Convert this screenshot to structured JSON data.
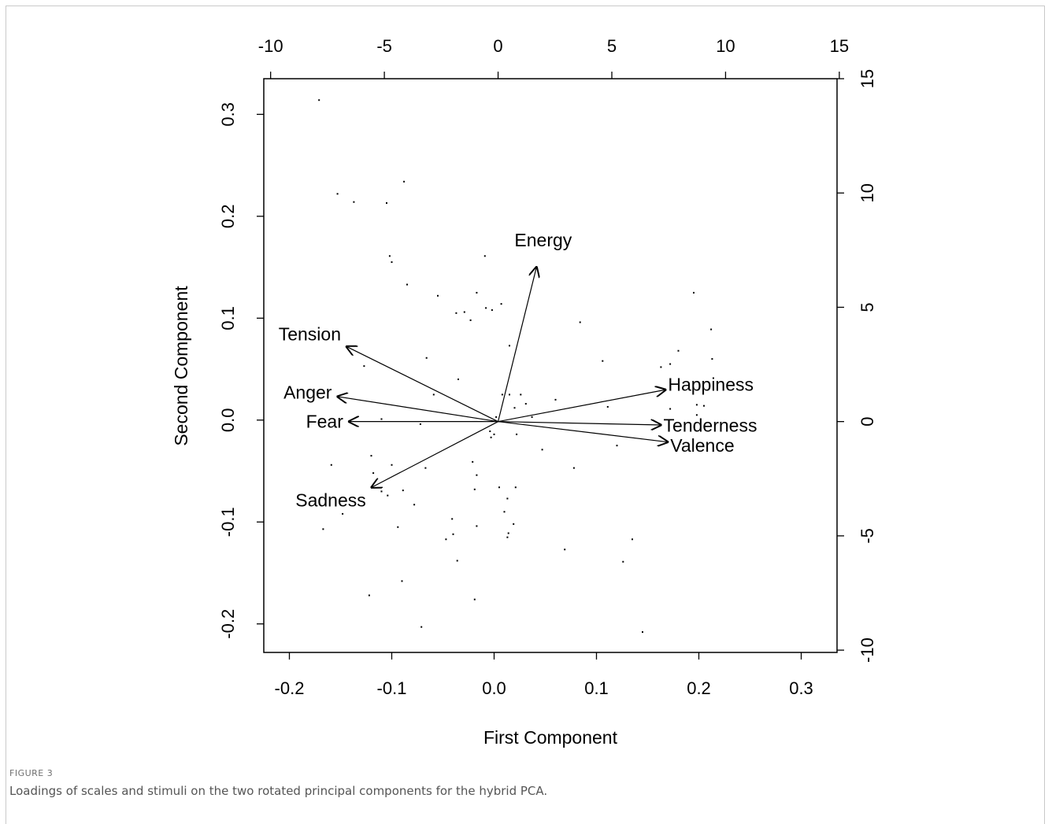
{
  "chart_data": {
    "type": "scatter",
    "title": "",
    "xlabel": "First Component",
    "ylabel": "Second Component",
    "xlim": [
      -0.225,
      0.335
    ],
    "ylim": [
      -0.228,
      0.335
    ],
    "x_ticks": [
      -0.2,
      -0.1,
      0.0,
      0.1,
      0.2,
      0.3
    ],
    "x_tick_labels": [
      "-0.2",
      "-0.1",
      "0.0",
      "0.1",
      "0.2",
      "0.3"
    ],
    "y_ticks": [
      -0.2,
      -0.1,
      0.0,
      0.1,
      0.2,
      0.3
    ],
    "y_tick_labels": [
      "-0.2",
      "-0.1",
      "0.0",
      "0.1",
      "0.2",
      "0.3"
    ],
    "top_axis": {
      "xlim": [
        -10.3,
        14.9
      ],
      "ticks": [
        -10,
        -5,
        0,
        5,
        10,
        15
      ],
      "tick_labels": [
        "-10",
        "-5",
        "0",
        "5",
        "10",
        "15"
      ]
    },
    "right_axis": {
      "ylim": [
        -10.1,
        15.0
      ],
      "ticks": [
        -10,
        -5,
        0,
        5,
        10,
        15
      ],
      "tick_labels": [
        "-10",
        "-5",
        "0",
        "5",
        "10",
        "15"
      ]
    },
    "loadings": [
      {
        "name": "Energy",
        "x": 1.7,
        "y": 6.8
      },
      {
        "name": "Tension",
        "x": -6.7,
        "y": 3.3
      },
      {
        "name": "Anger",
        "x": -7.1,
        "y": 1.1
      },
      {
        "name": "Fear",
        "x": -6.6,
        "y": 0.0
      },
      {
        "name": "Sadness",
        "x": -5.6,
        "y": -2.9
      },
      {
        "name": "Happiness",
        "x": 7.4,
        "y": 1.4
      },
      {
        "name": "Tenderness",
        "x": 7.2,
        "y": -0.15
      },
      {
        "name": "Valence",
        "x": 7.5,
        "y": -0.9
      }
    ],
    "points": [
      [
        -0.171,
        0.314
      ],
      [
        -0.153,
        0.222
      ],
      [
        -0.137,
        0.214
      ],
      [
        -0.105,
        0.213
      ],
      [
        -0.088,
        0.234
      ],
      [
        -0.102,
        0.161
      ],
      [
        -0.1,
        0.155
      ],
      [
        -0.085,
        0.133
      ],
      [
        -0.055,
        0.122
      ],
      [
        -0.009,
        0.161
      ],
      [
        -0.017,
        0.125
      ],
      [
        -0.037,
        0.105
      ],
      [
        -0.029,
        0.106
      ],
      [
        -0.023,
        0.098
      ],
      [
        -0.008,
        0.11
      ],
      [
        -0.002,
        0.108
      ],
      [
        0.007,
        0.114
      ],
      [
        0.084,
        0.096
      ],
      [
        0.195,
        0.125
      ],
      [
        0.212,
        0.089
      ],
      [
        0.015,
        0.073
      ],
      [
        -0.066,
        0.061
      ],
      [
        -0.127,
        0.053
      ],
      [
        -0.035,
        0.04
      ],
      [
        0.106,
        0.058
      ],
      [
        0.163,
        0.052
      ],
      [
        0.172,
        0.055
      ],
      [
        0.18,
        0.068
      ],
      [
        0.213,
        0.06
      ],
      [
        -0.059,
        0.025
      ],
      [
        0.008,
        0.025
      ],
      [
        0.015,
        0.025
      ],
      [
        0.026,
        0.025
      ],
      [
        0.031,
        0.016
      ],
      [
        0.06,
        0.02
      ],
      [
        0.111,
        0.013
      ],
      [
        0.02,
        0.012
      ],
      [
        0.002,
        0.003
      ],
      [
        0.037,
        0.003
      ],
      [
        0.198,
        0.015
      ],
      [
        0.205,
        0.014
      ],
      [
        0.198,
        0.005
      ],
      [
        0.172,
        0.011
      ],
      [
        -0.11,
        0.001
      ],
      [
        -0.072,
        -0.004
      ],
      [
        -0.004,
        -0.011
      ],
      [
        0.0,
        -0.014
      ],
      [
        -0.003,
        -0.017
      ],
      [
        0.022,
        -0.014
      ],
      [
        0.047,
        -0.029
      ],
      [
        0.12,
        -0.025
      ],
      [
        -0.159,
        -0.044
      ],
      [
        -0.12,
        -0.035
      ],
      [
        -0.1,
        -0.044
      ],
      [
        -0.067,
        -0.047
      ],
      [
        -0.021,
        -0.041
      ],
      [
        -0.017,
        -0.054
      ],
      [
        0.078,
        -0.047
      ],
      [
        -0.118,
        -0.052
      ],
      [
        -0.11,
        -0.07
      ],
      [
        -0.104,
        -0.074
      ],
      [
        -0.089,
        -0.069
      ],
      [
        -0.078,
        -0.083
      ],
      [
        -0.019,
        -0.068
      ],
      [
        0.005,
        -0.066
      ],
      [
        0.013,
        -0.077
      ],
      [
        0.021,
        -0.066
      ],
      [
        0.01,
        -0.09
      ],
      [
        0.019,
        -0.102
      ],
      [
        -0.041,
        -0.097
      ],
      [
        -0.04,
        -0.112
      ],
      [
        -0.047,
        -0.117
      ],
      [
        -0.017,
        -0.104
      ],
      [
        0.014,
        -0.111
      ],
      [
        0.013,
        -0.115
      ],
      [
        -0.094,
        -0.105
      ],
      [
        -0.148,
        -0.092
      ],
      [
        -0.167,
        -0.107
      ],
      [
        0.069,
        -0.127
      ],
      [
        0.135,
        -0.117
      ],
      [
        0.126,
        -0.139
      ],
      [
        -0.036,
        -0.138
      ],
      [
        -0.09,
        -0.158
      ],
      [
        -0.122,
        -0.172
      ],
      [
        -0.019,
        -0.176
      ],
      [
        -0.071,
        -0.203
      ],
      [
        0.145,
        -0.208
      ]
    ]
  },
  "caption": {
    "label": "FIGURE 3",
    "text": "Loadings of scales and stimuli on the two rotated principal components for the hybrid PCA."
  }
}
